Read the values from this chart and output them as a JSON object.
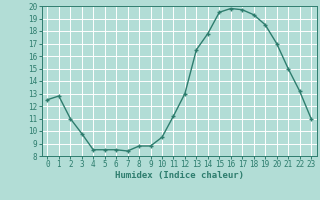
{
  "x": [
    0,
    1,
    2,
    3,
    4,
    5,
    6,
    7,
    8,
    9,
    10,
    11,
    12,
    13,
    14,
    15,
    16,
    17,
    18,
    19,
    20,
    21,
    22,
    23
  ],
  "y": [
    12.5,
    12.8,
    11.0,
    9.8,
    8.5,
    8.5,
    8.5,
    8.4,
    8.8,
    8.8,
    9.5,
    11.2,
    13.0,
    16.5,
    17.8,
    19.5,
    19.8,
    19.7,
    19.3,
    18.5,
    17.0,
    15.0,
    13.2,
    11.0
  ],
  "line_color": "#2e7d6e",
  "marker": "+",
  "marker_size": 3,
  "bg_color": "#b2ddd6",
  "grid_color": "#ffffff",
  "xlabel": "Humidex (Indice chaleur)",
  "xlim": [
    -0.5,
    23.5
  ],
  "ylim": [
    8,
    20
  ],
  "yticks": [
    8,
    9,
    10,
    11,
    12,
    13,
    14,
    15,
    16,
    17,
    18,
    19,
    20
  ],
  "xticks": [
    0,
    1,
    2,
    3,
    4,
    5,
    6,
    7,
    8,
    9,
    10,
    11,
    12,
    13,
    14,
    15,
    16,
    17,
    18,
    19,
    20,
    21,
    22,
    23
  ],
  "tick_fontsize": 5.5,
  "label_fontsize": 6.5
}
